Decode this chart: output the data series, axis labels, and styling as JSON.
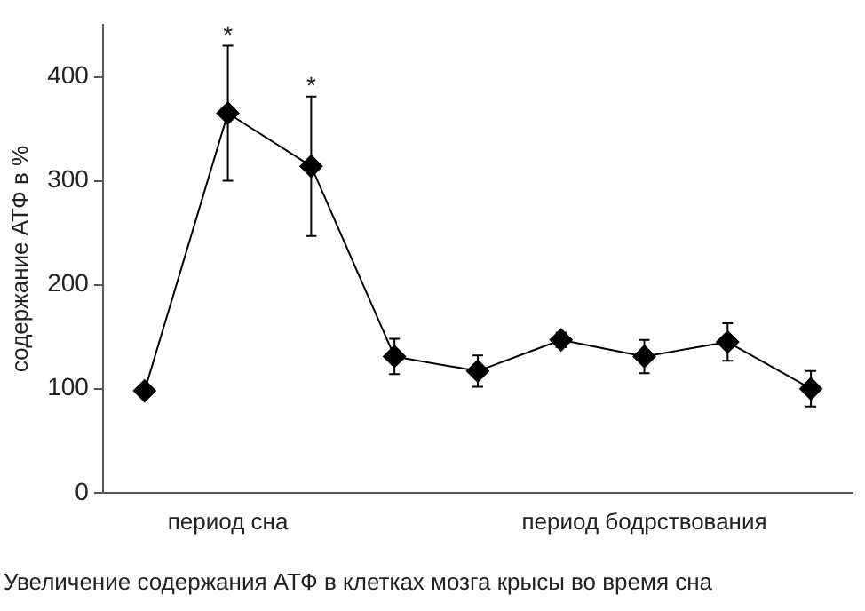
{
  "chart_data": {
    "type": "line",
    "ylabel": "содержание АТФ в %",
    "categories": [
      null,
      "период сна",
      null,
      null,
      null,
      null,
      "период бодрствования",
      null,
      null
    ],
    "series": [
      {
        "color": "#000000",
        "values": [
          98,
          365,
          314,
          131,
          117,
          147,
          131,
          145,
          100
        ],
        "errors": [
          null,
          65,
          67,
          17,
          15,
          7,
          16,
          18,
          17
        ],
        "value_labels": [
          null,
          "*",
          "*",
          null,
          null,
          null,
          null,
          null,
          null
        ]
      }
    ],
    "ylim": [
      0,
      450
    ],
    "yticks": [
      0,
      100,
      200,
      300,
      400
    ],
    "grid": false,
    "legend": false,
    "marker": "diamond",
    "line_style": "solid",
    "annotations": [
      "Увеличение содержания АТФ в клетках мозга крысы во время сна"
    ]
  }
}
